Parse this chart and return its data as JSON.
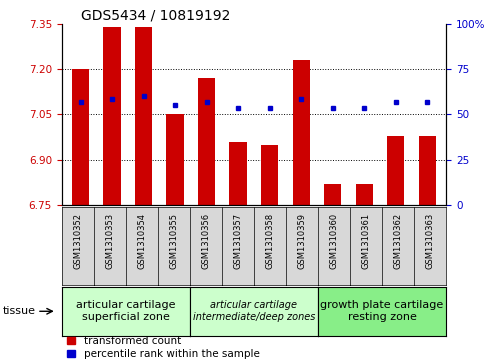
{
  "title": "GDS5434 / 10819192",
  "samples": [
    "GSM1310352",
    "GSM1310353",
    "GSM1310354",
    "GSM1310355",
    "GSM1310356",
    "GSM1310357",
    "GSM1310358",
    "GSM1310359",
    "GSM1310360",
    "GSM1310361",
    "GSM1310362",
    "GSM1310363"
  ],
  "red_values": [
    7.2,
    7.34,
    7.34,
    7.05,
    7.17,
    6.96,
    6.95,
    7.23,
    6.82,
    6.82,
    6.98,
    6.98
  ],
  "blue_values": [
    7.09,
    7.1,
    7.11,
    7.08,
    7.09,
    7.07,
    7.07,
    7.1,
    7.07,
    7.07,
    7.09,
    7.09
  ],
  "ylim_left": [
    6.75,
    7.35
  ],
  "ylim_right": [
    0,
    100
  ],
  "yticks_left": [
    6.75,
    6.9,
    7.05,
    7.2,
    7.35
  ],
  "yticks_right": [
    0,
    25,
    50,
    75,
    100
  ],
  "ytick_right_labels": [
    "0",
    "25",
    "50",
    "75",
    "100%"
  ],
  "hlines": [
    7.2,
    7.05,
    6.9
  ],
  "groups": [
    {
      "label": "articular cartilage\nsuperficial zone",
      "start": 0,
      "end": 3,
      "color": "#ccffcc",
      "style": "normal",
      "fontsize": 8
    },
    {
      "label": "articular cartilage\nintermediate/deep zones",
      "start": 4,
      "end": 7,
      "color": "#ccffcc",
      "style": "italic",
      "fontsize": 7
    },
    {
      "label": "growth plate cartilage\nresting zone",
      "start": 8,
      "end": 11,
      "color": "#88ee88",
      "style": "normal",
      "fontsize": 8
    }
  ],
  "bar_color": "#cc0000",
  "dot_color": "#0000cc",
  "bar_width": 0.55,
  "bar_bottom": 6.75,
  "tissue_label": "tissue",
  "legend_red": "transformed count",
  "legend_blue": "percentile rank within the sample",
  "title_fontsize": 10,
  "tick_fontsize": 7.5,
  "sample_fontsize": 6,
  "label_fontsize": 8
}
